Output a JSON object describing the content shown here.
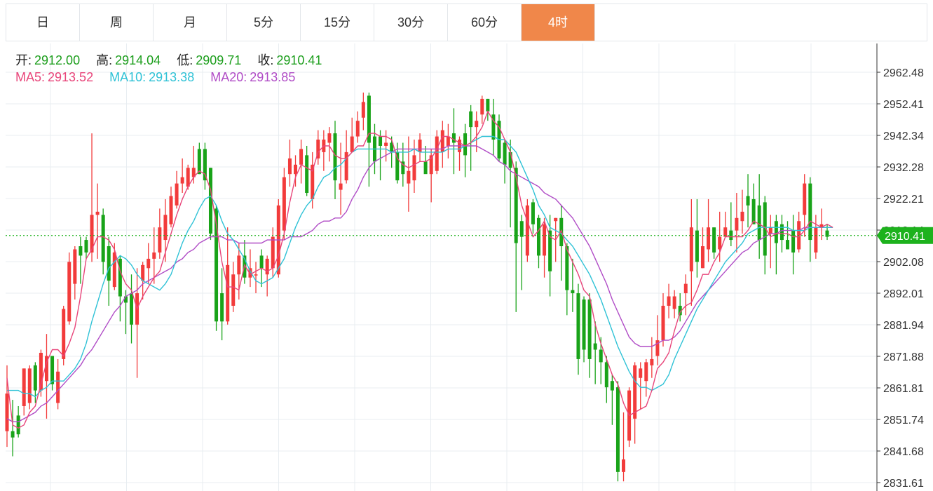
{
  "tabs": [
    {
      "label": "日",
      "active": false
    },
    {
      "label": "周",
      "active": false
    },
    {
      "label": "月",
      "active": false
    },
    {
      "label": "5分",
      "active": false
    },
    {
      "label": "15分",
      "active": false
    },
    {
      "label": "30分",
      "active": false
    },
    {
      "label": "60分",
      "active": false
    },
    {
      "label": "4时",
      "active": true
    }
  ],
  "legend": {
    "open_label": "开:",
    "open_value": "2912.00",
    "high_label": "高:",
    "high_value": "2914.04",
    "low_label": "低:",
    "low_value": "2909.71",
    "close_label": "收:",
    "close_value": "2910.41",
    "ma5_label": "MA5:",
    "ma5_value": "2913.52",
    "ma10_label": "MA10:",
    "ma10_value": "2913.38",
    "ma20_label": "MA20:",
    "ma20_value": "2913.85"
  },
  "colors": {
    "up": "#f23b3b",
    "down": "#19a319",
    "ma5": "#e8457a",
    "ma10": "#2fc2d6",
    "ma20": "#b04cc6",
    "grid": "#e8edf1",
    "current": "#1db21d",
    "active_tab": "#f0874a"
  },
  "chart_data": {
    "type": "candlestick",
    "ylim": [
      2831.61,
      2962.48
    ],
    "y_ticks": [
      "2962.48",
      "2952.41",
      "2942.34",
      "2932.28",
      "2922.21",
      "2912.14",
      "2902.08",
      "2892.01",
      "2881.94",
      "2871.88",
      "2861.81",
      "2851.74",
      "2841.68",
      "2831.61"
    ],
    "current_price": 2910.41,
    "current_label": "2910.41",
    "candles": [
      [
        2848,
        2860,
        2843,
        2869
      ],
      [
        2848,
        2846,
        2840,
        2858
      ],
      [
        2853,
        2847,
        2846,
        2856
      ],
      [
        2856,
        2868,
        2853,
        2868
      ],
      [
        2857,
        2868,
        2855,
        2869
      ],
      [
        2869,
        2861,
        2857,
        2870
      ],
      [
        2861,
        2873,
        2859,
        2874
      ],
      [
        2864,
        2872,
        2852,
        2879
      ],
      [
        2872,
        2863,
        2861,
        2872
      ],
      [
        2857,
        2867,
        2855,
        2871
      ],
      [
        2871,
        2887,
        2869,
        2888
      ],
      [
        2883,
        2902,
        2882,
        2905
      ],
      [
        2895,
        2906,
        2890,
        2907
      ],
      [
        2907,
        2904,
        2895,
        2910
      ],
      [
        2909,
        2905,
        2903,
        2910
      ],
      [
        2905,
        2917,
        2902,
        2943
      ],
      [
        2917,
        2918,
        2903,
        2927
      ],
      [
        2917,
        2902,
        2898,
        2919
      ],
      [
        2907,
        2896,
        2888,
        2910
      ],
      [
        2894,
        2905,
        2893,
        2908
      ],
      [
        2903,
        2891,
        2883,
        2904
      ],
      [
        2891,
        2889,
        2879,
        2893
      ],
      [
        2892,
        2882,
        2876,
        2898
      ],
      [
        2882,
        2892,
        2865,
        2900
      ],
      [
        2896,
        2901,
        2890,
        2902
      ],
      [
        2900,
        2903,
        2895,
        2908
      ],
      [
        2903,
        2905,
        2895,
        2913
      ],
      [
        2905,
        2913,
        2903,
        2919
      ],
      [
        2909,
        2917,
        2902,
        2922
      ],
      [
        2914,
        2923,
        2913,
        2926
      ],
      [
        2920,
        2927,
        2919,
        2931
      ],
      [
        2927,
        2929,
        2924,
        2935
      ],
      [
        2926,
        2932,
        2925,
        2933
      ],
      [
        2929,
        2932,
        2927,
        2939
      ],
      [
        2938,
        2930,
        2930,
        2940
      ],
      [
        2938,
        2928,
        2925,
        2940
      ],
      [
        2932,
        2911,
        2909,
        2932
      ],
      [
        2919,
        2883,
        2880,
        2920
      ],
      [
        2892,
        2883,
        2877,
        2900
      ],
      [
        2883,
        2901,
        2882,
        2913
      ],
      [
        2888,
        2898,
        2886,
        2902
      ],
      [
        2898,
        2904,
        2890,
        2908
      ],
      [
        2904,
        2897,
        2895,
        2909
      ],
      [
        2897,
        2900,
        2894,
        2906
      ],
      [
        2898,
        2898,
        2892,
        2902
      ],
      [
        2904,
        2900,
        2894,
        2906
      ],
      [
        2898,
        2903,
        2891,
        2904
      ],
      [
        2900,
        2910,
        2897,
        2913
      ],
      [
        2898,
        2920,
        2897,
        2922
      ],
      [
        2912,
        2929,
        2909,
        2932
      ],
      [
        2930,
        2935,
        2926,
        2941
      ],
      [
        2930,
        2933,
        2926,
        2936
      ],
      [
        2933,
        2938,
        2927,
        2941
      ],
      [
        2936,
        2924,
        2923,
        2939
      ],
      [
        2922,
        2933,
        2919,
        2937
      ],
      [
        2935,
        2941,
        2933,
        2944
      ],
      [
        2937,
        2941,
        2931,
        2944
      ],
      [
        2940,
        2943,
        2934,
        2945
      ],
      [
        2943,
        2928,
        2922,
        2947
      ],
      [
        2925,
        2927,
        2917,
        2940
      ],
      [
        2928,
        2937,
        2927,
        2944
      ],
      [
        2937,
        2942,
        2937,
        2948
      ],
      [
        2942,
        2947,
        2940,
        2950
      ],
      [
        2948,
        2953,
        2944,
        2956
      ],
      [
        2955,
        2940,
        2926,
        2956
      ],
      [
        2942,
        2934,
        2930,
        2946
      ],
      [
        2942,
        2939,
        2928,
        2944
      ],
      [
        2939,
        2940,
        2934,
        2944
      ],
      [
        2940,
        2937,
        2932,
        2942
      ],
      [
        2937,
        2928,
        2927,
        2940
      ],
      [
        2934,
        2930,
        2926,
        2940
      ],
      [
        2927,
        2931,
        2918,
        2942
      ],
      [
        2928,
        2936,
        2924,
        2941
      ],
      [
        2937,
        2941,
        2934,
        2943
      ],
      [
        2934,
        2930,
        2931,
        2939
      ],
      [
        2930,
        2936,
        2921,
        2938
      ],
      [
        2931,
        2942,
        2930,
        2944
      ],
      [
        2937,
        2944,
        2932,
        2947
      ],
      [
        2939,
        2942,
        2935,
        2946
      ],
      [
        2943,
        2940,
        2930,
        2951
      ],
      [
        2937,
        2941,
        2931,
        2942
      ],
      [
        2943,
        2936,
        2929,
        2946
      ],
      [
        2950,
        2945,
        2931,
        2952
      ],
      [
        2945,
        2947,
        2937,
        2950
      ],
      [
        2949,
        2954,
        2946,
        2955
      ],
      [
        2954,
        2950,
        2947,
        2954
      ],
      [
        2949,
        2941,
        2936,
        2954
      ],
      [
        2947,
        2935,
        2934,
        2949
      ],
      [
        2940,
        2933,
        2927,
        2941
      ],
      [
        2937,
        2932,
        2913,
        2941
      ],
      [
        2932,
        2908,
        2886,
        2934
      ],
      [
        2915,
        2910,
        2893,
        2917
      ],
      [
        2904,
        2920,
        2902,
        2922
      ],
      [
        2921,
        2914,
        2911,
        2922
      ],
      [
        2916,
        2904,
        2900,
        2917
      ],
      [
        2904,
        2914,
        2897,
        2916
      ],
      [
        2912,
        2899,
        2891,
        2917
      ],
      [
        2915,
        2916,
        2902,
        2916
      ],
      [
        2916,
        2907,
        2896,
        2920
      ],
      [
        2907,
        2893,
        2885,
        2908
      ],
      [
        2893,
        2892,
        2886,
        2903
      ],
      [
        2892,
        2871,
        2866,
        2895
      ],
      [
        2890,
        2874,
        2870,
        2891
      ],
      [
        2890,
        2871,
        2865,
        2892
      ],
      [
        2876,
        2874,
        2863,
        2883
      ],
      [
        2874,
        2870,
        2863,
        2878
      ],
      [
        2870,
        2862,
        2857,
        2872
      ],
      [
        2864,
        2861,
        2850,
        2866
      ],
      [
        2862,
        2835,
        2832,
        2864
      ],
      [
        2835,
        2839,
        2832,
        2854
      ],
      [
        2845,
        2861,
        2843,
        2862
      ],
      [
        2852,
        2869,
        2844,
        2870
      ],
      [
        2865,
        2868,
        2855,
        2870
      ],
      [
        2864,
        2870,
        2859,
        2871
      ],
      [
        2869,
        2871,
        2865,
        2878
      ],
      [
        2872,
        2877,
        2869,
        2885
      ],
      [
        2877,
        2888,
        2875,
        2892
      ],
      [
        2888,
        2891,
        2884,
        2895
      ],
      [
        2887,
        2891,
        2884,
        2893
      ],
      [
        2888,
        2885,
        2883,
        2892
      ],
      [
        2892,
        2895,
        2885,
        2898
      ],
      [
        2899,
        2913,
        2888,
        2922
      ],
      [
        2912,
        2902,
        2897,
        2922
      ],
      [
        2900,
        2907,
        2900,
        2913
      ],
      [
        2906,
        2913,
        2902,
        2922
      ],
      [
        2913,
        2905,
        2903,
        2913
      ],
      [
        2906,
        2910,
        2902,
        2918
      ],
      [
        2910,
        2913,
        2910,
        2918
      ],
      [
        2912,
        2909,
        2907,
        2921
      ],
      [
        2912,
        2916,
        2905,
        2924
      ],
      [
        2915,
        2918,
        2911,
        2925
      ],
      [
        2923,
        2920,
        2913,
        2930
      ],
      [
        2922,
        2914,
        2915,
        2927
      ],
      [
        2920,
        2909,
        2903,
        2930
      ],
      [
        2921,
        2904,
        2898,
        2923
      ],
      [
        2911,
        2913,
        2900,
        2917
      ],
      [
        2915,
        2908,
        2898,
        2917
      ],
      [
        2914,
        2909,
        2905,
        2917
      ],
      [
        2909,
        2906,
        2906,
        2915
      ],
      [
        2912,
        2905,
        2898,
        2917
      ],
      [
        2906,
        2915,
        2905,
        2918
      ],
      [
        2917,
        2927,
        2910,
        2930
      ],
      [
        2927,
        2909,
        2902,
        2929
      ],
      [
        2905,
        2913,
        2903,
        2917
      ],
      [
        2913,
        2914,
        2909,
        2919
      ],
      [
        2912,
        2910,
        2909,
        2914
      ]
    ],
    "ma5": [
      2865,
      2850,
      2849,
      2850,
      2854,
      2856,
      2863,
      2870,
      2874,
      2874,
      2872,
      2876,
      2881,
      2891,
      2903,
      2906,
      2910,
      2910,
      2909,
      2906,
      2899,
      2895,
      2893,
      2887,
      2891,
      2894,
      2897,
      2899,
      2905,
      2911,
      2917,
      2922,
      2926,
      2929,
      2931,
      2930,
      2925,
      2914,
      2902,
      2894,
      2894,
      2893,
      2901,
      2898,
      2899,
      2900,
      2899,
      2900,
      2904,
      2911,
      2921,
      2929,
      2933,
      2932,
      2931,
      2937,
      2939,
      2939,
      2936,
      2935,
      2935,
      2937,
      2939,
      2939,
      2943,
      2943,
      2942,
      2942,
      2941,
      2935,
      2933,
      2932,
      2933,
      2934,
      2934,
      2935,
      2938,
      2942,
      2942,
      2941,
      2940,
      2939,
      2940,
      2942,
      2945,
      2950,
      2947,
      2945,
      2941,
      2937,
      2929,
      2920,
      2915,
      2910,
      2912,
      2915,
      2910,
      2909,
      2912,
      2906,
      2902,
      2898,
      2893,
      2891,
      2882,
      2876,
      2871,
      2866,
      2863,
      2857,
      2853,
      2854,
      2855,
      2856,
      2861,
      2868,
      2870,
      2873,
      2880,
      2886,
      2888,
      2889,
      2893,
      2898,
      2898,
      2902,
      2905,
      2910,
      2910,
      2910,
      2910,
      2912,
      2915,
      2914,
      2913,
      2910,
      2911,
      2911,
      2911,
      2910,
      2910,
      2912,
      2915,
      2914,
      2913,
      2914,
      2913
    ],
    "ma10": [
      2861,
      2861,
      2861,
      2860,
      2860,
      2859,
      2861,
      2862,
      2864,
      2864,
      2864,
      2866,
      2868,
      2871,
      2876,
      2883,
      2889,
      2895,
      2900,
      2902,
      2904,
      2903,
      2901,
      2898,
      2896,
      2895,
      2894,
      2893,
      2895,
      2898,
      2903,
      2908,
      2912,
      2915,
      2919,
      2922,
      2923,
      2920,
      2915,
      2911,
      2909,
      2906,
      2903,
      2899,
      2896,
      2895,
      2896,
      2897,
      2900,
      2903,
      2908,
      2913,
      2917,
      2920,
      2922,
      2926,
      2929,
      2930,
      2932,
      2933,
      2935,
      2937,
      2938,
      2938,
      2938,
      2938,
      2938,
      2938,
      2937,
      2937,
      2937,
      2937,
      2938,
      2937,
      2937,
      2937,
      2937,
      2937,
      2938,
      2938,
      2938,
      2939,
      2940,
      2941,
      2942,
      2942,
      2942,
      2941,
      2941,
      2939,
      2937,
      2933,
      2929,
      2925,
      2920,
      2917,
      2913,
      2912,
      2911,
      2909,
      2907,
      2904,
      2901,
      2898,
      2894,
      2890,
      2885,
      2880,
      2875,
      2871,
      2867,
      2864,
      2862,
      2862,
      2861,
      2862,
      2863,
      2866,
      2871,
      2875,
      2879,
      2883,
      2887,
      2890,
      2893,
      2896,
      2899,
      2902,
      2904,
      2906,
      2908,
      2911,
      2912,
      2913,
      2913,
      2913,
      2913,
      2913,
      2913,
      2912,
      2912,
      2912,
      2913,
      2913,
      2913,
      2913,
      2913
    ],
    "ma20": [
      2852,
      2851,
      2851,
      2852,
      2853,
      2854,
      2856,
      2857,
      2859,
      2861,
      2863,
      2865,
      2867,
      2869,
      2872,
      2874,
      2877,
      2880,
      2883,
      2886,
      2888,
      2891,
      2892,
      2893,
      2895,
      2896,
      2897,
      2898,
      2899,
      2900,
      2902,
      2903,
      2905,
      2906,
      2908,
      2909,
      2910,
      2910,
      2910,
      2909,
      2909,
      2908,
      2908,
      2908,
      2908,
      2908,
      2909,
      2909,
      2909,
      2909,
      2910,
      2910,
      2910,
      2911,
      2912,
      2914,
      2915,
      2915,
      2916,
      2916,
      2918,
      2922,
      2925,
      2929,
      2932,
      2934,
      2935,
      2936,
      2937,
      2938,
      2938,
      2938,
      2938,
      2938,
      2938,
      2938,
      2938,
      2938,
      2939,
      2939,
      2939,
      2939,
      2939,
      2939,
      2938,
      2937,
      2936,
      2934,
      2933,
      2931,
      2930,
      2929,
      2928,
      2927,
      2926,
      2924,
      2923,
      2922,
      2920,
      2918,
      2916,
      2913,
      2910,
      2907,
      2903,
      2899,
      2895,
      2890,
      2886,
      2882,
      2878,
      2876,
      2875,
      2875,
      2875,
      2876,
      2877,
      2877,
      2878,
      2880,
      2883,
      2886,
      2889,
      2891,
      2893,
      2895,
      2897,
      2899,
      2901,
      2903,
      2905,
      2906,
      2908,
      2909,
      2910,
      2911,
      2911,
      2912,
      2912,
      2912,
      2912,
      2913,
      2913,
      2913,
      2913,
      2913,
      2913
    ]
  }
}
